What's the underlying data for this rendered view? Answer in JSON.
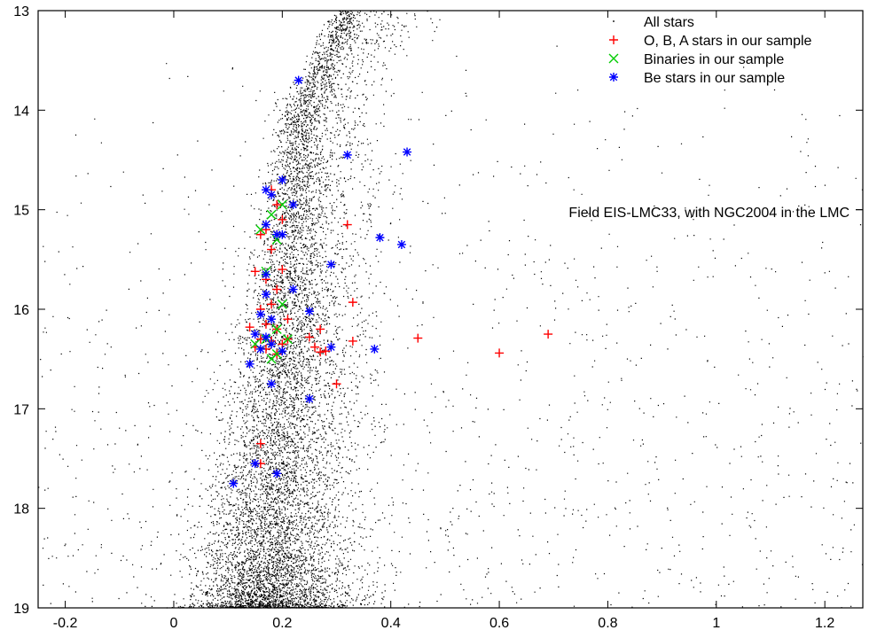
{
  "chart_data": {
    "type": "scatter",
    "title": "",
    "xlabel": "",
    "ylabel": "",
    "xlim": [
      -0.25,
      1.27
    ],
    "ylim": [
      19,
      13
    ],
    "y_inverted": true,
    "x_ticks": [
      -0.2,
      0,
      0.2,
      0.4,
      0.6,
      0.8,
      1,
      1.2
    ],
    "x_tick_labels": [
      "-0.2",
      "0",
      "0.2",
      "0.4",
      "0.6",
      "0.8",
      "1",
      "1.2"
    ],
    "y_ticks": [
      13,
      14,
      15,
      16,
      17,
      18,
      19
    ],
    "y_tick_labels": [
      "13",
      "14",
      "15",
      "16",
      "17",
      "18",
      "19"
    ],
    "grid": false,
    "legend_position": "top-right",
    "annotation": "Field EIS-LMC33, with NGC2004 in the LMC",
    "series": [
      {
        "name": "All stars",
        "marker": "dot",
        "color": "#000000",
        "note": "dense field population; main sequence ridge from about (0.15, 19) rising to (0.22, 14) and curving to (0.32, 13)",
        "points": []
      },
      {
        "name": "O, B, A stars in our sample",
        "marker": "plus",
        "color": "#ff0000",
        "points": [
          [
            0.18,
            14.8
          ],
          [
            0.19,
            14.95
          ],
          [
            0.2,
            15.1
          ],
          [
            0.17,
            15.2
          ],
          [
            0.19,
            15.25
          ],
          [
            0.16,
            15.25
          ],
          [
            0.18,
            15.4
          ],
          [
            0.2,
            15.6
          ],
          [
            0.15,
            15.62
          ],
          [
            0.17,
            15.7
          ],
          [
            0.19,
            15.8
          ],
          [
            0.18,
            15.95
          ],
          [
            0.16,
            16.0
          ],
          [
            0.21,
            16.1
          ],
          [
            0.17,
            16.15
          ],
          [
            0.14,
            16.18
          ],
          [
            0.19,
            16.2
          ],
          [
            0.16,
            16.3
          ],
          [
            0.18,
            16.32
          ],
          [
            0.2,
            16.35
          ],
          [
            0.15,
            16.38
          ],
          [
            0.17,
            16.4
          ],
          [
            0.19,
            16.45
          ],
          [
            0.21,
            16.3
          ],
          [
            0.25,
            16.28
          ],
          [
            0.26,
            16.38
          ],
          [
            0.27,
            16.43
          ],
          [
            0.28,
            16.42
          ],
          [
            0.27,
            16.2
          ],
          [
            0.32,
            15.15
          ],
          [
            0.33,
            15.93
          ],
          [
            0.33,
            16.32
          ],
          [
            0.3,
            16.75
          ],
          [
            0.45,
            16.29
          ],
          [
            0.6,
            16.44
          ],
          [
            0.69,
            16.25
          ],
          [
            0.16,
            17.35
          ],
          [
            0.16,
            17.55
          ]
        ]
      },
      {
        "name": "Binaries in our sample",
        "marker": "cross",
        "color": "#00cc00",
        "points": [
          [
            0.2,
            14.95
          ],
          [
            0.18,
            15.05
          ],
          [
            0.16,
            15.2
          ],
          [
            0.19,
            15.3
          ],
          [
            0.17,
            15.62
          ],
          [
            0.2,
            15.95
          ],
          [
            0.19,
            16.2
          ],
          [
            0.17,
            16.3
          ],
          [
            0.15,
            16.35
          ],
          [
            0.21,
            16.3
          ],
          [
            0.19,
            16.45
          ],
          [
            0.18,
            16.5
          ]
        ]
      },
      {
        "name": "Be stars in our sample",
        "marker": "star",
        "color": "#0000ff",
        "points": [
          [
            0.23,
            13.7
          ],
          [
            0.32,
            14.45
          ],
          [
            0.43,
            14.42
          ],
          [
            0.17,
            14.8
          ],
          [
            0.2,
            14.7
          ],
          [
            0.18,
            14.85
          ],
          [
            0.22,
            14.95
          ],
          [
            0.17,
            15.15
          ],
          [
            0.19,
            15.25
          ],
          [
            0.2,
            15.25
          ],
          [
            0.38,
            15.28
          ],
          [
            0.42,
            15.35
          ],
          [
            0.29,
            15.55
          ],
          [
            0.17,
            15.65
          ],
          [
            0.22,
            15.8
          ],
          [
            0.17,
            15.85
          ],
          [
            0.16,
            16.05
          ],
          [
            0.18,
            16.1
          ],
          [
            0.25,
            16.02
          ],
          [
            0.15,
            16.25
          ],
          [
            0.17,
            16.28
          ],
          [
            0.29,
            16.38
          ],
          [
            0.37,
            16.4
          ],
          [
            0.16,
            16.4
          ],
          [
            0.18,
            16.35
          ],
          [
            0.2,
            16.42
          ],
          [
            0.14,
            16.55
          ],
          [
            0.18,
            16.75
          ],
          [
            0.25,
            16.9
          ],
          [
            0.15,
            17.55
          ],
          [
            0.19,
            17.65
          ],
          [
            0.11,
            17.75
          ]
        ]
      }
    ]
  }
}
